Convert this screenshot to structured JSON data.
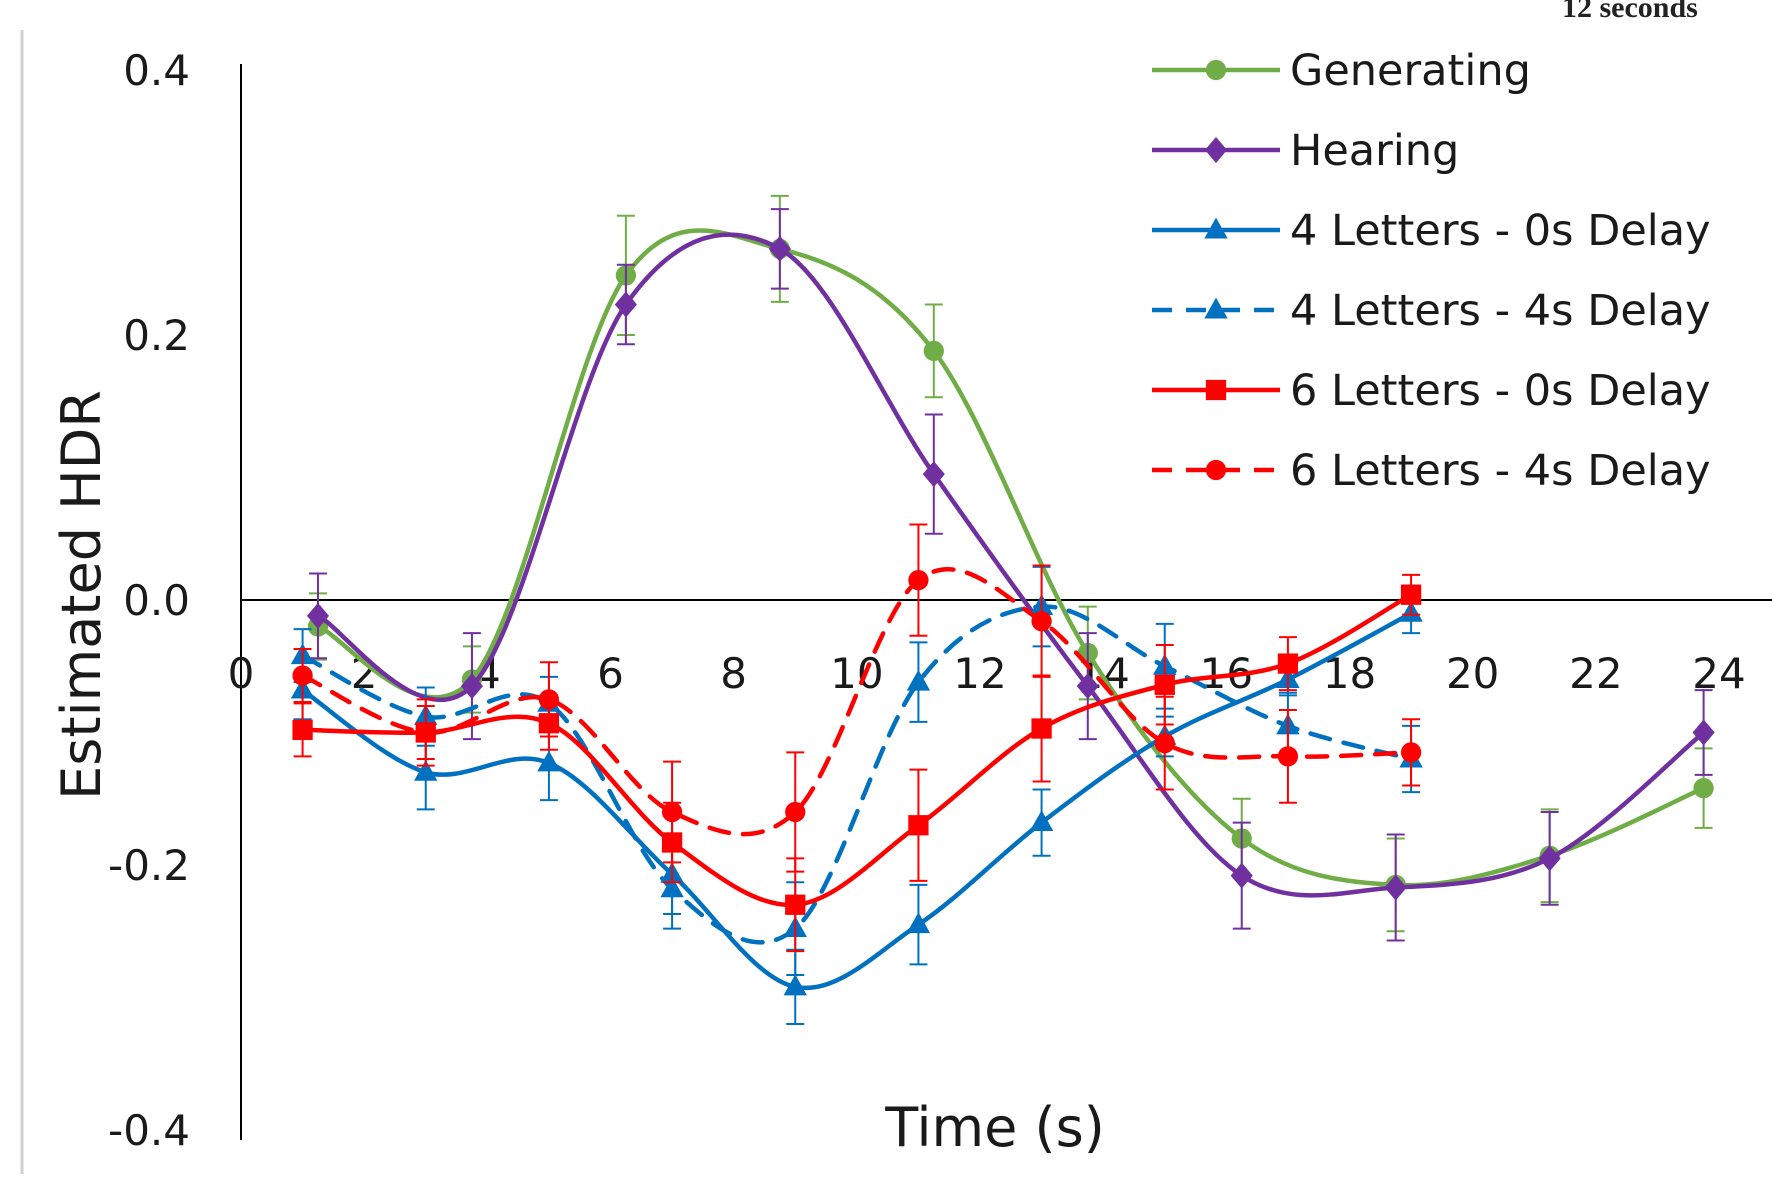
{
  "corner_text": "12 seconds",
  "chart_data": {
    "type": "line",
    "xlabel": "Time (s)",
    "ylabel": "Estimated HDR",
    "xlim": [
      0,
      24
    ],
    "ylim": [
      -0.4,
      0.4
    ],
    "x_ticks": [
      "0",
      "2",
      "4",
      "6",
      "8",
      "10",
      "12",
      "14",
      "16",
      "18",
      "20",
      "22",
      "24"
    ],
    "y_ticks": [
      "0.4",
      "0.2",
      "0.0",
      "-0.2",
      "-0.4"
    ],
    "grid": false,
    "legend_position": "top-right",
    "series": [
      {
        "name": "Generating",
        "color": "#70ad47",
        "marker": "circle",
        "dash": "solid",
        "x": [
          1.25,
          3.75,
          6.25,
          8.75,
          11.25,
          13.75,
          16.25,
          18.75,
          21.25,
          23.75
        ],
        "y": [
          -0.02,
          -0.06,
          0.245,
          0.265,
          0.188,
          -0.04,
          -0.18,
          -0.215,
          -0.193,
          -0.142
        ],
        "err": [
          0.025,
          0.025,
          0.045,
          0.04,
          0.035,
          0.035,
          0.03,
          0.035,
          0.035,
          0.03
        ]
      },
      {
        "name": "Hearing",
        "color": "#7030a0",
        "marker": "diamond",
        "dash": "solid",
        "x": [
          1.25,
          3.75,
          6.25,
          8.75,
          11.25,
          13.75,
          16.25,
          18.75,
          21.25,
          23.75
        ],
        "y": [
          -0.012,
          -0.065,
          0.223,
          0.265,
          0.095,
          -0.065,
          -0.208,
          -0.217,
          -0.195,
          -0.1
        ],
        "err": [
          0.032,
          0.04,
          0.03,
          0.03,
          0.045,
          0.04,
          0.04,
          0.04,
          0.035,
          0.032
        ]
      },
      {
        "name": "4 Letters - 0s Delay",
        "color": "#0070c0",
        "marker": "triangle",
        "dash": "solid",
        "x": [
          1,
          3,
          5,
          7,
          9,
          11,
          13,
          15,
          17,
          19
        ],
        "y": [
          -0.068,
          -0.13,
          -0.123,
          -0.207,
          -0.292,
          -0.245,
          -0.168,
          -0.103,
          -0.06,
          -0.01
        ],
        "err": [
          0.022,
          0.028,
          0.028,
          0.03,
          0.028,
          0.03,
          0.025,
          0.015,
          0.012,
          0.015
        ]
      },
      {
        "name": "4 Letters - 4s Delay",
        "color": "#0070c0",
        "marker": "triangle",
        "dash": "dashed",
        "x": [
          1,
          3,
          5,
          7,
          9,
          11,
          13,
          15,
          17,
          19
        ],
        "y": [
          -0.042,
          -0.088,
          -0.078,
          -0.218,
          -0.248,
          -0.062,
          -0.005,
          -0.05,
          -0.095,
          -0.12
        ],
        "err": [
          0.02,
          0.022,
          0.02,
          0.03,
          0.035,
          0.03,
          0.03,
          0.032,
          0.025,
          0.025
        ]
      },
      {
        "name": "6 Letters - 0s Delay",
        "color": "#ff0000",
        "marker": "square",
        "dash": "solid",
        "x": [
          1,
          3,
          5,
          7,
          9,
          11,
          13,
          15,
          17,
          19
        ],
        "y": [
          -0.098,
          -0.1,
          -0.093,
          -0.183,
          -0.23,
          -0.17,
          -0.097,
          -0.064,
          -0.048,
          0.004
        ],
        "err": [
          0.02,
          0.02,
          0.02,
          0.03,
          0.035,
          0.042,
          0.04,
          0.03,
          0.02,
          0.015
        ]
      },
      {
        "name": "6 Letters - 4s Delay",
        "color": "#ff0000",
        "marker": "circle",
        "dash": "dashed",
        "x": [
          1,
          3,
          5,
          7,
          9,
          11,
          13,
          15,
          17,
          19
        ],
        "y": [
          -0.057,
          -0.1,
          -0.075,
          -0.16,
          -0.16,
          0.015,
          -0.016,
          -0.108,
          -0.118,
          -0.115
        ],
        "err": [
          0.02,
          0.025,
          0.028,
          0.038,
          0.045,
          0.042,
          0.042,
          0.035,
          0.035,
          0.025
        ]
      }
    ]
  }
}
